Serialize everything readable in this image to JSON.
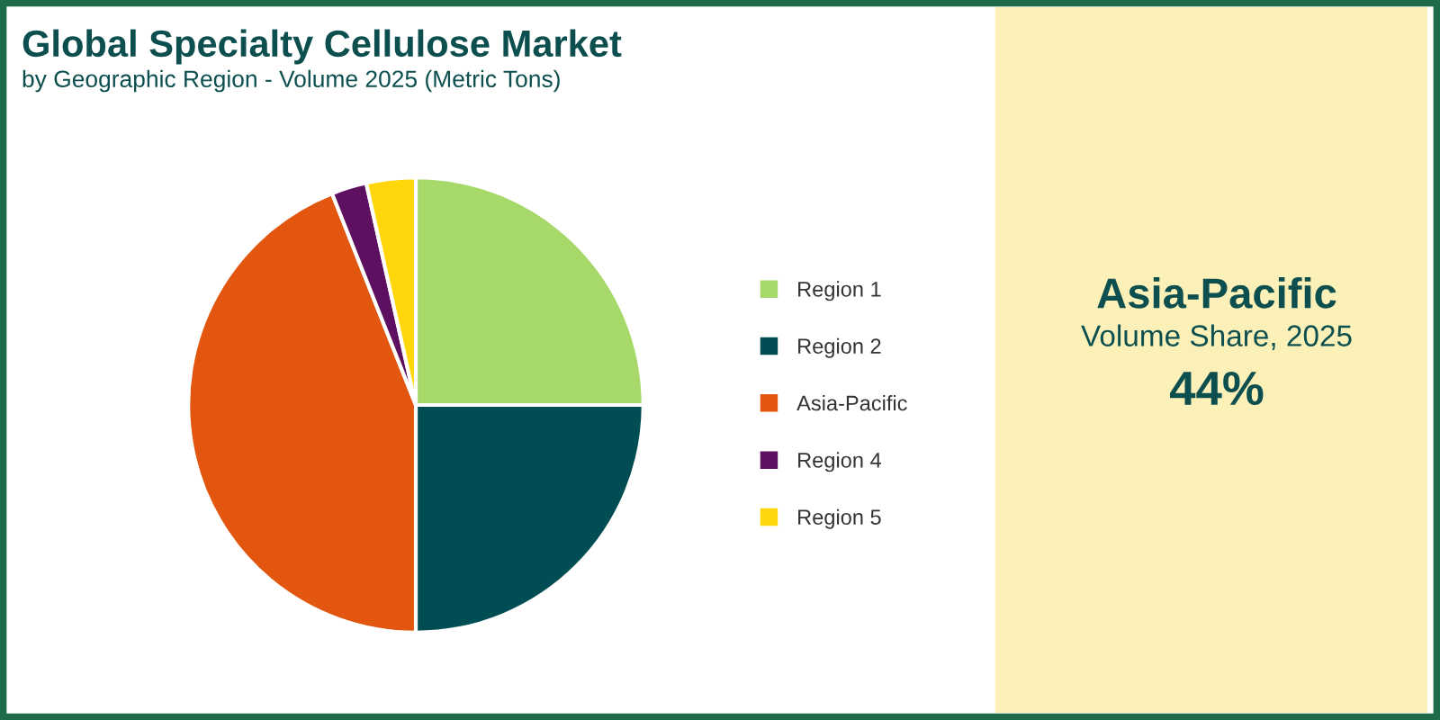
{
  "chart_data": {
    "type": "pie",
    "title": "Global Specialty Cellulose Market",
    "subtitle": "by Geographic Region - Volume 2025 (Metric Tons)",
    "categories": [
      "Region 1",
      "Region 2",
      "Asia-Pacific",
      "Region 4",
      "Region 5"
    ],
    "values": [
      25,
      25,
      44,
      2.5,
      3.5
    ],
    "colors": [
      "#a6d96a",
      "#004d54",
      "#e2560f",
      "#5e1060",
      "#ffd60a"
    ],
    "legend": "right",
    "annotations": [
      "Asia-Pacific",
      "Volume Share, 2025",
      "44%"
    ]
  }
}
